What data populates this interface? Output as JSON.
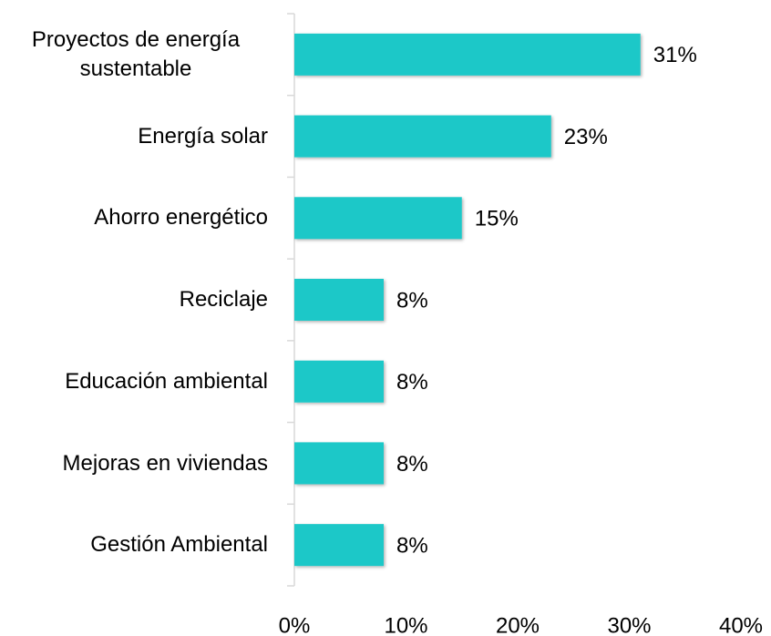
{
  "chart_data": {
    "type": "hbar",
    "categories": [
      "Proyectos de energía sustentable",
      "Energía solar",
      "Ahorro energético",
      "Reciclaje",
      "Educación ambiental",
      "Mejoras en viviendas",
      "Gestión Ambiental"
    ],
    "values": [
      31,
      23,
      15,
      8,
      8,
      8,
      8
    ],
    "value_labels": [
      "31%",
      "23%",
      "15%",
      "8%",
      "8%",
      "8%",
      "8%"
    ],
    "color": "#1bc8c8",
    "xlim": [
      0,
      40
    ],
    "xticks": [
      {
        "value": 0,
        "label": "0%"
      },
      {
        "value": 10,
        "label": "10%"
      },
      {
        "value": 20,
        "label": "20%"
      },
      {
        "value": 30,
        "label": "30%"
      },
      {
        "value": 40,
        "label": "40%"
      }
    ],
    "grid": false
  }
}
